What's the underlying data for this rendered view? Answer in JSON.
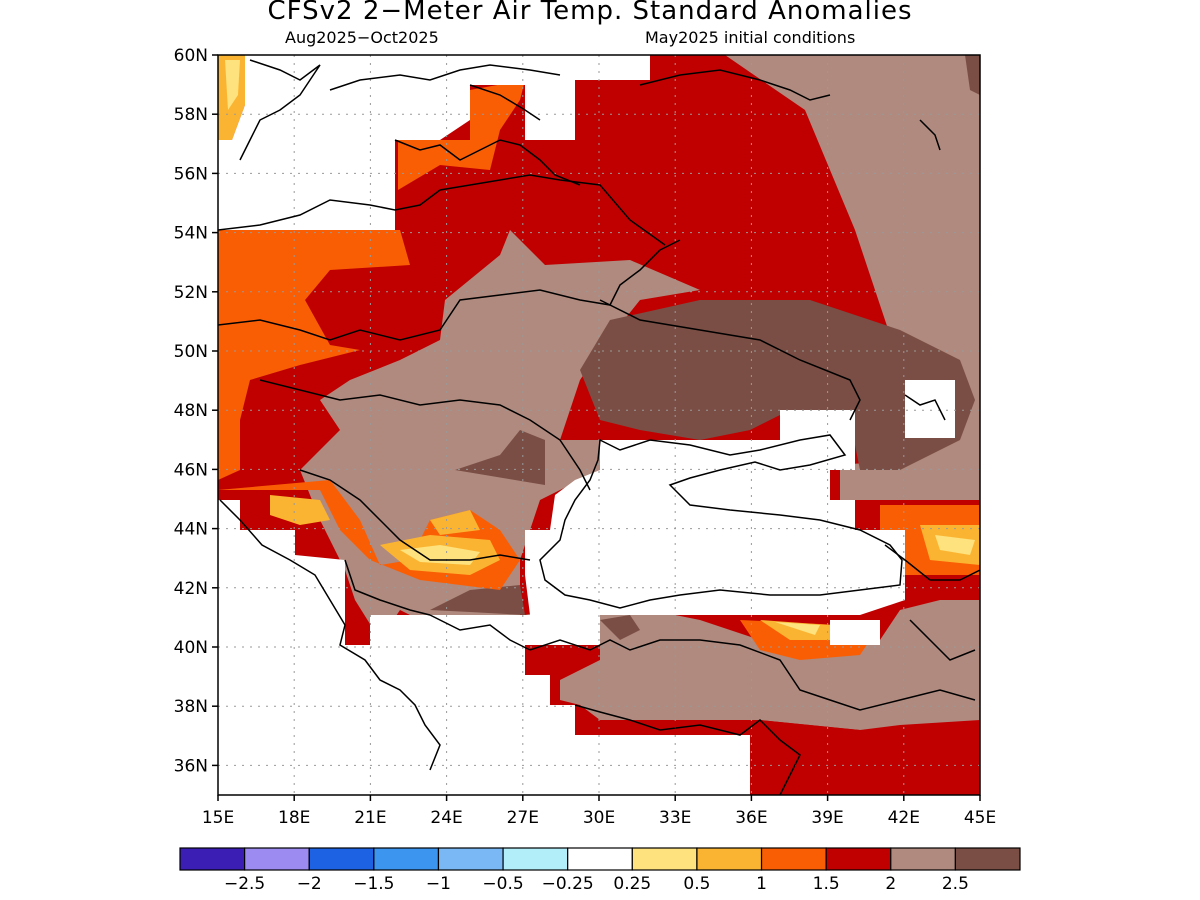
{
  "title": "CFSv2 2−Meter Air Temp. Standard Anomalies",
  "subtitle_left": "Aug2025−Oct2025",
  "subtitle_right": "May2025 initial conditions",
  "map": {
    "lon_range": [
      15,
      45
    ],
    "lat_range": [
      35,
      60
    ],
    "lon_ticks": [
      {
        "value": 15,
        "label": "15E"
      },
      {
        "value": 18,
        "label": "18E"
      },
      {
        "value": 21,
        "label": "21E"
      },
      {
        "value": 24,
        "label": "24E"
      },
      {
        "value": 27,
        "label": "27E"
      },
      {
        "value": 30,
        "label": "30E"
      },
      {
        "value": 33,
        "label": "33E"
      },
      {
        "value": 36,
        "label": "36E"
      },
      {
        "value": 39,
        "label": "39E"
      },
      {
        "value": 42,
        "label": "42E"
      },
      {
        "value": 45,
        "label": "45E"
      }
    ],
    "lat_ticks": [
      {
        "value": 60,
        "label": "60N"
      },
      {
        "value": 58,
        "label": "58N"
      },
      {
        "value": 56,
        "label": "56N"
      },
      {
        "value": 54,
        "label": "54N"
      },
      {
        "value": 52,
        "label": "52N"
      },
      {
        "value": 50,
        "label": "50N"
      },
      {
        "value": 48,
        "label": "48N"
      },
      {
        "value": 46,
        "label": "46N"
      },
      {
        "value": 44,
        "label": "44N"
      },
      {
        "value": 42,
        "label": "42N"
      },
      {
        "value": 40,
        "label": "40N"
      },
      {
        "value": 38,
        "label": "38N"
      },
      {
        "value": 36,
        "label": "36N"
      }
    ],
    "grid": true
  },
  "colorbar": {
    "colors": [
      "#3b1fb5",
      "#9c8cf2",
      "#1d62e3",
      "#3c96f0",
      "#79b8f5",
      "#b1eef9",
      "#ffffff",
      "#fde27d",
      "#fbb431",
      "#fa5e05",
      "#c00000",
      "#b08a7e",
      "#7a4e44"
    ],
    "labels": [
      "−2.5",
      "−2",
      "−1.5",
      "−1",
      "−0.5",
      "−0.25",
      "0.25",
      "0.5",
      "1",
      "1.5",
      "2",
      "2.5"
    ]
  }
}
